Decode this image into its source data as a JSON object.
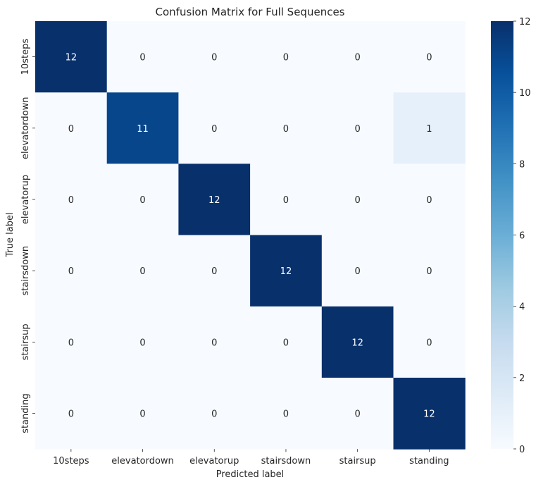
{
  "chart_data": {
    "type": "heatmap",
    "title": "Confusion Matrix for Full Sequences",
    "xlabel": "Predicted label",
    "ylabel": "True label",
    "x_categories": [
      "10steps",
      "elevatordown",
      "elevatorup",
      "stairsdown",
      "stairsup",
      "standing"
    ],
    "y_categories": [
      "10steps",
      "elevatordown",
      "elevatorup",
      "stairsdown",
      "stairsup",
      "standing"
    ],
    "values": [
      [
        12,
        0,
        0,
        0,
        0,
        0
      ],
      [
        0,
        11,
        0,
        0,
        0,
        1
      ],
      [
        0,
        0,
        12,
        0,
        0,
        0
      ],
      [
        0,
        0,
        0,
        12,
        0,
        0
      ],
      [
        0,
        0,
        0,
        0,
        12,
        0
      ],
      [
        0,
        0,
        0,
        0,
        0,
        12
      ]
    ],
    "colorbar": {
      "min": 0,
      "max": 12,
      "ticks": [
        0,
        2,
        4,
        6,
        8,
        10,
        12
      ],
      "colormap": "Blues"
    }
  }
}
